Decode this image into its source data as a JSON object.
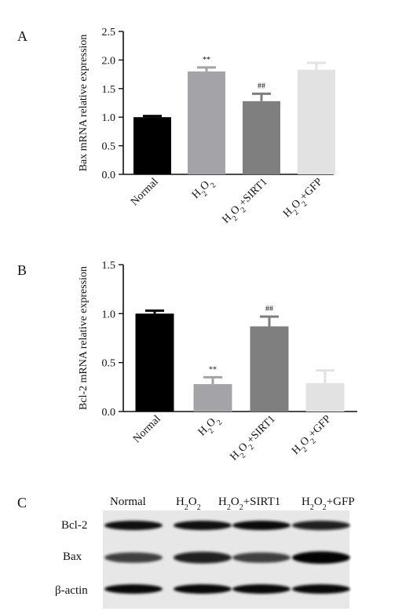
{
  "panels": {
    "a_letter": "A",
    "b_letter": "B",
    "c_letter": "C"
  },
  "chart_data": [
    {
      "type": "bar",
      "panel": "A",
      "ylabel": "Bax mRNA relative expression",
      "ylim": [
        0,
        2.5
      ],
      "yticks": [
        "0.0",
        "0.5",
        "1.0",
        "1.5",
        "2.0",
        "2.5"
      ],
      "categories": [
        "Normal",
        "H2O2",
        "H2O2+SIRT1",
        "H2O2+GFP"
      ],
      "values": [
        1.0,
        1.8,
        1.28,
        1.83
      ],
      "errors": [
        0.02,
        0.07,
        0.13,
        0.12
      ],
      "colors": [
        "#000000",
        "#a4a4a8",
        "#7f7f7f",
        "#e2e2e2"
      ],
      "annotations": [
        "",
        "**",
        "##",
        ""
      ]
    },
    {
      "type": "bar",
      "panel": "B",
      "ylabel": "Bcl-2 mRNA relative expression",
      "ylim": [
        0,
        1.5
      ],
      "yticks": [
        "0.0",
        "0.5",
        "1.0",
        "1.5"
      ],
      "categories": [
        "Normal",
        "H2O2",
        "H2O2+SIRT1",
        "H2O2+GFP"
      ],
      "values": [
        1.0,
        0.28,
        0.87,
        0.29
      ],
      "errors": [
        0.03,
        0.07,
        0.1,
        0.13
      ],
      "colors": [
        "#000000",
        "#a4a4a8",
        "#7f7f7f",
        "#e2e2e2"
      ],
      "annotations": [
        "",
        "**",
        "##",
        ""
      ]
    }
  ],
  "blot": {
    "columns": [
      "Normal",
      "H2O2",
      "H2O2+SIRT1",
      "H2O2+GFP"
    ],
    "rows": [
      "Bcl-2",
      "Bax",
      "β-actin"
    ],
    "band_intensity": [
      [
        0.85,
        0.85,
        0.88,
        0.8
      ],
      [
        0.55,
        0.8,
        0.55,
        0.95
      ],
      [
        0.9,
        0.9,
        0.9,
        0.9
      ]
    ]
  }
}
